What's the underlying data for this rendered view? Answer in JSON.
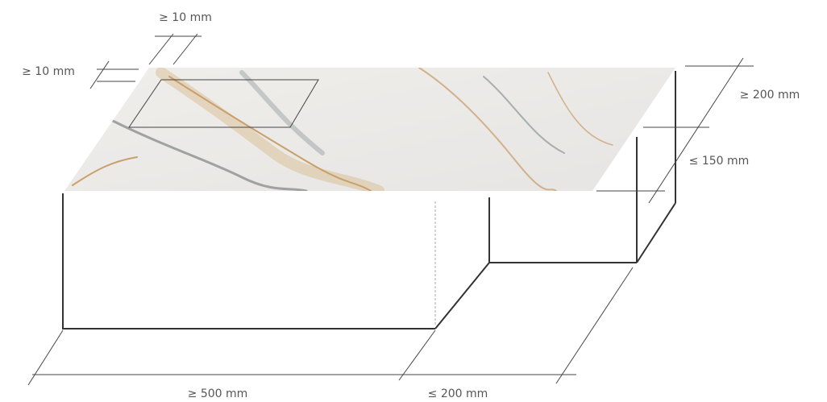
{
  "dimensions": {
    "cutout_inset_top": "≥ 10 mm",
    "cutout_inset_left": "≥ 10 mm",
    "top_depth": "≥ 200 mm",
    "overhang": "≤ 150 mm",
    "length": "≥ 500 mm",
    "side_depth": "≤ 200 mm"
  }
}
